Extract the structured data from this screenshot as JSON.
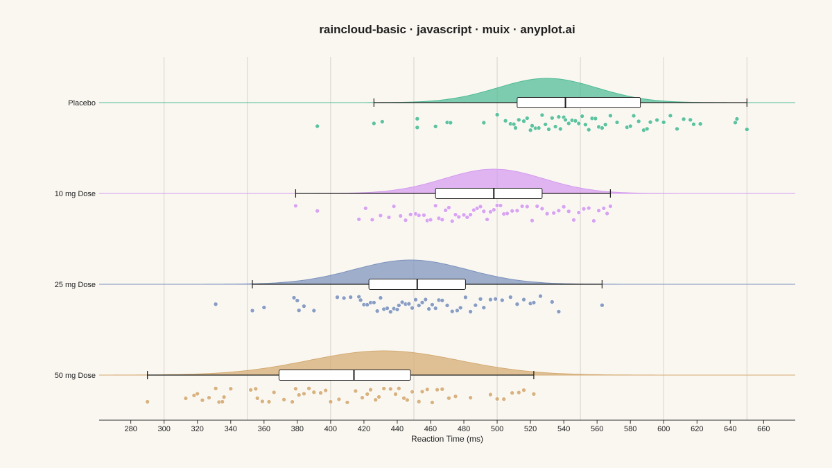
{
  "chart_data": {
    "type": "raincloud",
    "title": "raincloud-basic · javascript · muix · anyplot.ai",
    "xlabel": "Reaction Time (ms)",
    "ylabel": "",
    "xlim": [
      261,
      679
    ],
    "xticks": [
      280,
      300,
      320,
      340,
      360,
      380,
      400,
      420,
      440,
      460,
      480,
      500,
      520,
      540,
      560,
      580,
      600,
      620,
      640,
      660
    ],
    "grid": "vertical lines every 50 ms",
    "grid_lines": [
      300,
      350,
      400,
      450,
      500,
      550,
      600,
      650
    ],
    "legend": "none",
    "series": [
      {
        "name": "Placebo",
        "color": "#4dbb95",
        "density_peak": 530,
        "density_sd": 30,
        "box": {
          "whisker_low": 426,
          "q1": 512,
          "median": 541,
          "q3": 586,
          "whisker_high": 650
        },
        "points": [
          392,
          426,
          431,
          452,
          452,
          463,
          470,
          472,
          492,
          500,
          508,
          510,
          505,
          511,
          513,
          516,
          518,
          520,
          521,
          523,
          525,
          527,
          529,
          531,
          533,
          535,
          537,
          538,
          540,
          541,
          543,
          545,
          547,
          549,
          551,
          553,
          555,
          557,
          559,
          561,
          563,
          565,
          568,
          572,
          578,
          580,
          582,
          585,
          588,
          590,
          592,
          596,
          600,
          604,
          608,
          612,
          616,
          618,
          622,
          643,
          644,
          650
        ]
      },
      {
        "name": "10 mg Dose",
        "color": "#d49af0",
        "density_peak": 498,
        "density_sd": 30,
        "box": {
          "whisker_low": 379,
          "q1": 463,
          "median": 498,
          "q3": 527,
          "whisker_high": 568
        },
        "points": [
          379,
          392,
          417,
          421,
          425,
          430,
          435,
          438,
          442,
          445,
          448,
          451,
          453,
          456,
          458,
          460,
          463,
          465,
          467,
          469,
          471,
          473,
          475,
          477,
          480,
          482,
          484,
          486,
          488,
          490,
          492,
          494,
          496,
          498,
          500,
          502,
          504,
          506,
          509,
          512,
          515,
          518,
          521,
          524,
          527,
          530,
          534,
          537,
          540,
          543,
          546,
          549,
          552,
          555,
          558,
          561,
          564,
          566,
          568
        ]
      },
      {
        "name": "25 mg Dose",
        "color": "#7c92bd",
        "density_peak": 448,
        "density_sd": 34,
        "box": {
          "whisker_low": 353,
          "q1": 423,
          "median": 452,
          "q3": 481,
          "whisker_high": 563
        },
        "points": [
          331,
          353,
          360,
          378,
          380,
          381,
          384,
          390,
          404,
          408,
          412,
          417,
          418,
          420,
          422,
          424,
          426,
          428,
          430,
          432,
          434,
          436,
          438,
          440,
          441,
          443,
          445,
          447,
          449,
          451,
          453,
          455,
          457,
          459,
          461,
          463,
          465,
          467,
          470,
          473,
          476,
          478,
          481,
          484,
          487,
          490,
          492,
          496,
          499,
          503,
          508,
          512,
          516,
          520,
          522,
          526,
          533,
          537,
          563
        ]
      },
      {
        "name": "50 mg Dose",
        "color": "#d4aa72",
        "density_peak": 432,
        "density_sd": 45,
        "box": {
          "whisker_low": 290,
          "q1": 369,
          "median": 414,
          "q3": 448,
          "whisker_high": 522
        },
        "points": [
          290,
          313,
          318,
          320,
          323,
          327,
          331,
          333,
          335,
          336,
          340,
          352,
          355,
          356,
          359,
          363,
          366,
          372,
          377,
          379,
          381,
          384,
          387,
          390,
          394,
          397,
          400,
          405,
          410,
          415,
          419,
          422,
          424,
          427,
          429,
          432,
          436,
          439,
          441,
          444,
          446,
          449,
          453,
          455,
          458,
          461,
          464,
          467,
          471,
          475,
          484,
          496,
          500,
          504,
          509,
          513,
          516,
          522
        ]
      }
    ]
  }
}
